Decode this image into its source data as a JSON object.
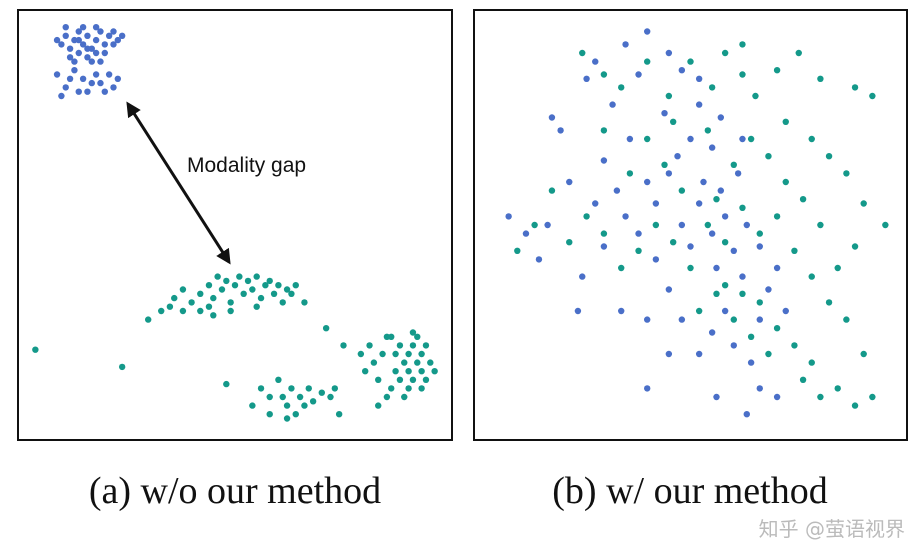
{
  "colors": {
    "image": "#4a6fc8",
    "text": "#14998a"
  },
  "watermark": "知乎 @萤语视界",
  "chart_data": [
    {
      "type": "scatter",
      "title": "(a) w/o our method",
      "annotation": "Modality gap",
      "axes_visible": false,
      "grid": false,
      "series": [
        {
          "color": "#4a6fc8",
          "points": [
            [
              10,
              92
            ],
            [
              11,
              94
            ],
            [
              12,
              91
            ],
            [
              13,
              93
            ],
            [
              14,
              95
            ],
            [
              15,
              92
            ],
            [
              16,
              94
            ],
            [
              17,
              91
            ],
            [
              18,
              93
            ],
            [
              19,
              95
            ],
            [
              20,
              92
            ],
            [
              21,
              94
            ],
            [
              12,
              89
            ],
            [
              14,
              90
            ],
            [
              16,
              89
            ],
            [
              18,
              90
            ],
            [
              20,
              90
            ],
            [
              22,
              92
            ],
            [
              23,
              93
            ],
            [
              9,
              93
            ],
            [
              11,
              96
            ],
            [
              15,
              96
            ],
            [
              13,
              88
            ],
            [
              17,
              88
            ],
            [
              19,
              88
            ],
            [
              22,
              95
            ],
            [
              24,
              94
            ],
            [
              16,
              91
            ],
            [
              14,
              93
            ],
            [
              18,
              96
            ],
            [
              9,
              85
            ],
            [
              11,
              82
            ],
            [
              13,
              86
            ],
            [
              15,
              84
            ],
            [
              16,
              81
            ],
            [
              18,
              85
            ],
            [
              19,
              83
            ],
            [
              20,
              81
            ],
            [
              21,
              85
            ],
            [
              23,
              84
            ],
            [
              10,
              80
            ],
            [
              14,
              81
            ],
            [
              17,
              83
            ],
            [
              22,
              82
            ],
            [
              12,
              84
            ]
          ]
        },
        {
          "color": "#14998a",
          "points": [
            [
              30,
              28
            ],
            [
              33,
              30
            ],
            [
              35,
              31
            ],
            [
              36,
              33
            ],
            [
              38,
              30
            ],
            [
              40,
              32
            ],
            [
              42,
              34
            ],
            [
              44,
              36
            ],
            [
              45,
              33
            ],
            [
              46,
              38
            ],
            [
              47,
              35
            ],
            [
              48,
              37
            ],
            [
              49,
              32
            ],
            [
              50,
              36
            ],
            [
              51,
              38
            ],
            [
              52,
              34
            ],
            [
              53,
              37
            ],
            [
              54,
              35
            ],
            [
              55,
              38
            ],
            [
              56,
              33
            ],
            [
              57,
              36
            ],
            [
              58,
              37
            ],
            [
              59,
              34
            ],
            [
              60,
              36
            ],
            [
              61,
              32
            ],
            [
              62,
              35
            ],
            [
              63,
              34
            ],
            [
              64,
              36
            ],
            [
              66,
              32
            ],
            [
              42,
              30
            ],
            [
              45,
              29
            ],
            [
              49,
              30
            ],
            [
              55,
              31
            ],
            [
              38,
              35
            ],
            [
              44,
              31
            ],
            [
              79,
              20
            ],
            [
              80,
              16
            ],
            [
              81,
              22
            ],
            [
              82,
              18
            ],
            [
              83,
              14
            ],
            [
              84,
              20
            ],
            [
              85,
              24
            ],
            [
              86,
              12
            ],
            [
              87,
              16
            ],
            [
              87,
              20
            ],
            [
              88,
              14
            ],
            [
              88,
              22
            ],
            [
              89,
              18
            ],
            [
              90,
              12
            ],
            [
              90,
              16
            ],
            [
              90,
              20
            ],
            [
              91,
              14
            ],
            [
              91,
              22
            ],
            [
              92,
              18
            ],
            [
              92,
              24
            ],
            [
              93,
              12
            ],
            [
              93,
              16
            ],
            [
              93,
              20
            ],
            [
              94,
              14
            ],
            [
              94,
              22
            ],
            [
              95,
              18
            ],
            [
              96,
              16
            ],
            [
              89,
              10
            ],
            [
              85,
              10
            ],
            [
              83,
              8
            ],
            [
              86,
              24
            ],
            [
              91,
              25
            ],
            [
              54,
              8
            ],
            [
              56,
              12
            ],
            [
              58,
              6
            ],
            [
              60,
              14
            ],
            [
              61,
              10
            ],
            [
              62,
              8
            ],
            [
              63,
              12
            ],
            [
              64,
              6
            ],
            [
              65,
              10
            ],
            [
              66,
              8
            ],
            [
              67,
              12
            ],
            [
              68,
              9
            ],
            [
              70,
              11
            ],
            [
              72,
              10
            ],
            [
              73,
              12
            ],
            [
              58,
              10
            ],
            [
              4,
              21
            ],
            [
              24,
              17
            ],
            [
              48,
              13
            ],
            [
              71,
              26
            ],
            [
              75,
              22
            ],
            [
              74,
              6
            ],
            [
              62,
              5
            ]
          ]
        }
      ]
    },
    {
      "type": "scatter",
      "title": "(b) w/ our method",
      "axes_visible": false,
      "grid": false,
      "series": [
        {
          "color": "#4a6fc8",
          "points": [
            [
              8,
              52
            ],
            [
              12,
              48
            ],
            [
              17,
              50
            ],
            [
              15,
              42
            ],
            [
              22,
              60
            ],
            [
              25,
              38
            ],
            [
              30,
              65
            ],
            [
              32,
              78
            ],
            [
              28,
              88
            ],
            [
              35,
              92
            ],
            [
              38,
              85
            ],
            [
              40,
              95
            ],
            [
              45,
              90
            ],
            [
              48,
              86
            ],
            [
              52,
              84
            ],
            [
              36,
              70
            ],
            [
              40,
              60
            ],
            [
              42,
              55
            ],
            [
              45,
              62
            ],
            [
              48,
              50
            ],
            [
              50,
              45
            ],
            [
              52,
              55
            ],
            [
              55,
              48
            ],
            [
              56,
              40
            ],
            [
              58,
              52
            ],
            [
              60,
              44
            ],
            [
              62,
              38
            ],
            [
              58,
              30
            ],
            [
              55,
              25
            ],
            [
              60,
              22
            ],
            [
              64,
              18
            ],
            [
              66,
              28
            ],
            [
              68,
              35
            ],
            [
              45,
              35
            ],
            [
              42,
              42
            ],
            [
              38,
              48
            ],
            [
              35,
              52
            ],
            [
              30,
              45
            ],
            [
              28,
              55
            ],
            [
              50,
              70
            ],
            [
              55,
              68
            ],
            [
              44,
              76
            ],
            [
              47,
              66
            ],
            [
              53,
              60
            ],
            [
              57,
              58
            ],
            [
              61,
              62
            ],
            [
              63,
              50
            ],
            [
              66,
              45
            ],
            [
              70,
              40
            ],
            [
              72,
              30
            ],
            [
              66,
              12
            ],
            [
              70,
              10
            ],
            [
              48,
              28
            ],
            [
              52,
              20
            ],
            [
              45,
              20
            ],
            [
              40,
              28
            ],
            [
              34,
              30
            ],
            [
              24,
              30
            ],
            [
              20,
              72
            ],
            [
              18,
              75
            ],
            [
              33,
              58
            ],
            [
              57,
              75
            ],
            [
              52,
              78
            ],
            [
              26,
              84
            ],
            [
              62,
              70
            ],
            [
              40,
              12
            ],
            [
              56,
              10
            ],
            [
              63,
              6
            ]
          ]
        },
        {
          "color": "#14998a",
          "points": [
            [
              25,
              90
            ],
            [
              30,
              85
            ],
            [
              34,
              82
            ],
            [
              40,
              88
            ],
            [
              45,
              80
            ],
            [
              50,
              88
            ],
            [
              55,
              82
            ],
            [
              58,
              90
            ],
            [
              62,
              85
            ],
            [
              65,
              80
            ],
            [
              70,
              86
            ],
            [
              75,
              90
            ],
            [
              80,
              84
            ],
            [
              88,
              82
            ],
            [
              92,
              80
            ],
            [
              72,
              74
            ],
            [
              78,
              70
            ],
            [
              82,
              66
            ],
            [
              86,
              62
            ],
            [
              90,
              55
            ],
            [
              95,
              50
            ],
            [
              88,
              45
            ],
            [
              84,
              40
            ],
            [
              80,
              50
            ],
            [
              76,
              56
            ],
            [
              72,
              60
            ],
            [
              68,
              66
            ],
            [
              64,
              70
            ],
            [
              60,
              64
            ],
            [
              56,
              56
            ],
            [
              54,
              50
            ],
            [
              58,
              46
            ],
            [
              62,
              54
            ],
            [
              66,
              48
            ],
            [
              70,
              52
            ],
            [
              74,
              44
            ],
            [
              78,
              38
            ],
            [
              82,
              32
            ],
            [
              86,
              28
            ],
            [
              90,
              20
            ],
            [
              92,
              10
            ],
            [
              88,
              8
            ],
            [
              84,
              12
            ],
            [
              78,
              18
            ],
            [
              74,
              22
            ],
            [
              70,
              26
            ],
            [
              66,
              32
            ],
            [
              62,
              34
            ],
            [
              58,
              36
            ],
            [
              50,
              40
            ],
            [
              46,
              46
            ],
            [
              42,
              50
            ],
            [
              38,
              44
            ],
            [
              34,
              40
            ],
            [
              30,
              48
            ],
            [
              26,
              52
            ],
            [
              22,
              46
            ],
            [
              18,
              58
            ],
            [
              14,
              50
            ],
            [
              10,
              44
            ],
            [
              40,
              70
            ],
            [
              44,
              64
            ],
            [
              48,
              58
            ],
            [
              36,
              62
            ],
            [
              52,
              30
            ],
            [
              56,
              34
            ],
            [
              60,
              28
            ],
            [
              64,
              24
            ],
            [
              76,
              14
            ],
            [
              80,
              10
            ],
            [
              68,
              20
            ],
            [
              46,
              74
            ],
            [
              54,
              72
            ],
            [
              30,
              72
            ],
            [
              62,
              92
            ]
          ]
        }
      ]
    }
  ]
}
